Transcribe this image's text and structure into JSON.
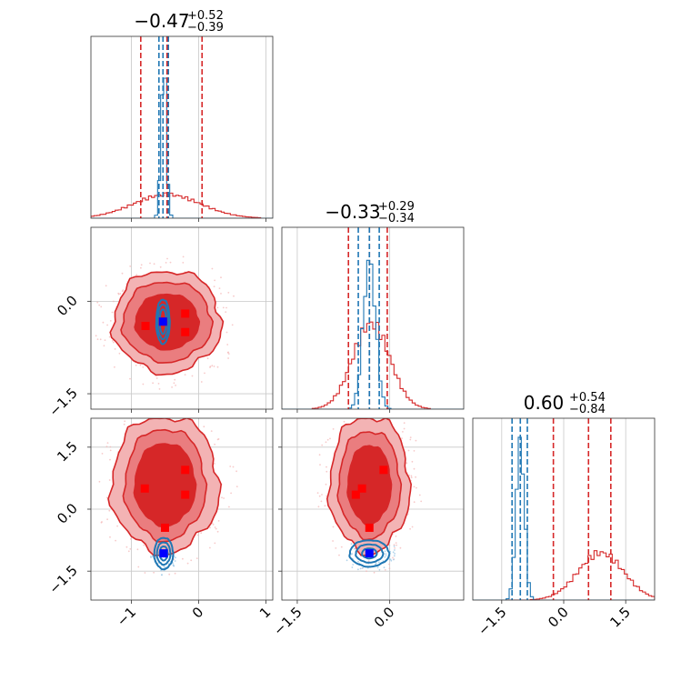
{
  "chart_data": {
    "type": "corner",
    "grid": true,
    "colors": {
      "red": "#d62728",
      "red_fill_outer": "#f3b3b4",
      "red_fill_mid": "#ea7d7f",
      "red_fill_inner": "#d62728",
      "blue": "#1f77b4",
      "marker_red": "#ff0000",
      "marker_blue": "#0000ff"
    },
    "params": [
      {
        "name": "p0",
        "title": {
          "value": "−0.47",
          "plus": "+0.52",
          "minus": "−0.39"
        },
        "range": [
          -1.6,
          1.1
        ],
        "ticks": [
          -1,
          0,
          1
        ],
        "tick_labels": [
          "−1",
          "0",
          "1"
        ],
        "red_quantiles": [
          -0.86,
          -0.47,
          0.05
        ],
        "blue_quantiles": [
          -0.59,
          -0.53,
          -0.45
        ],
        "blue_hist": {
          "center": -0.52,
          "width": 0.04,
          "height": 0.84
        },
        "red_hist": {
          "center": -0.47,
          "width": 0.5,
          "height": 0.13
        }
      },
      {
        "name": "p1",
        "title": {
          "value": "−0.33",
          "plus": "+0.29",
          "minus": "−0.34"
        },
        "range": [
          -1.75,
          1.2
        ],
        "ticks": [
          -1.5,
          0.0
        ],
        "tick_labels": [
          "−1.5",
          "0.0"
        ],
        "red_quantiles": [
          -0.67,
          -0.33,
          -0.04
        ],
        "blue_quantiles": [
          -0.51,
          -0.33,
          -0.17
        ],
        "blue_hist": {
          "center": -0.33,
          "width": 0.1,
          "height": 0.82
        },
        "red_hist": {
          "center": -0.3,
          "width": 0.3,
          "height": 0.47
        }
      },
      {
        "name": "p2",
        "title": {
          "value": "0.60",
          "plus": "+0.54",
          "minus": "−0.84"
        },
        "range": [
          -2.2,
          2.2
        ],
        "ticks": [
          -1.5,
          0.0,
          1.5
        ],
        "tick_labels": [
          "−1.5",
          "0.0",
          "1.5"
        ],
        "red_quantiles": [
          -0.25,
          0.6,
          1.14
        ],
        "blue_quantiles": [
          -1.25,
          -1.05,
          -0.88
        ],
        "blue_hist": {
          "center": -1.05,
          "width": 0.1,
          "height": 0.88
        },
        "red_hist": {
          "center": 0.9,
          "width": 0.55,
          "height": 0.26
        }
      }
    ],
    "panels_2d": [
      {
        "x": 0,
        "y": 1,
        "red_contours": [
          {
            "center": [
              -0.47,
              -0.33
            ],
            "radii": [
              0.47,
              0.45
            ]
          },
          {
            "center": [
              -0.47,
              -0.33
            ],
            "radii": [
              0.66,
              0.65
            ]
          },
          {
            "center": [
              -0.47,
              -0.33
            ],
            "radii": [
              0.8,
              0.83
            ]
          }
        ],
        "blue_contours": [
          {
            "center": [
              -0.53,
              -0.33
            ],
            "radii": [
              0.05,
              0.2
            ]
          },
          {
            "center": [
              -0.53,
              -0.33
            ],
            "radii": [
              0.08,
              0.28
            ]
          },
          {
            "center": [
              -0.53,
              -0.33
            ],
            "radii": [
              0.1,
              0.36
            ]
          }
        ],
        "red_markers": [
          [
            -0.79,
            -0.4
          ],
          [
            -0.53,
            -0.33
          ],
          [
            -0.2,
            -0.2
          ],
          [
            -0.2,
            -0.5
          ]
        ],
        "blue_markers": [
          [
            -0.53,
            -0.33
          ]
        ]
      },
      {
        "x": 0,
        "y": 2,
        "red_contours": [
          {
            "center": [
              -0.5,
              0.6
            ],
            "radii": [
              0.45,
              1.0
            ]
          },
          {
            "center": [
              -0.5,
              0.6
            ],
            "radii": [
              0.6,
              1.35
            ]
          },
          {
            "center": [
              -0.5,
              0.6
            ],
            "radii": [
              0.8,
              1.65
            ]
          }
        ],
        "blue_contours": [
          {
            "center": [
              -0.52,
              -1.07
            ],
            "radii": [
              0.06,
              0.17
            ]
          },
          {
            "center": [
              -0.52,
              -1.07
            ],
            "radii": [
              0.1,
              0.27
            ]
          },
          {
            "center": [
              -0.52,
              -1.07
            ],
            "radii": [
              0.14,
              0.38
            ]
          }
        ],
        "red_markers": [
          [
            -0.8,
            0.5
          ],
          [
            -0.2,
            0.95
          ],
          [
            -0.2,
            0.35
          ],
          [
            -0.5,
            -0.45
          ]
        ],
        "blue_markers": [
          [
            -0.52,
            -1.07
          ]
        ]
      },
      {
        "x": 1,
        "y": 2,
        "red_contours": [
          {
            "center": [
              -0.33,
              0.6
            ],
            "radii": [
              0.35,
              0.95
            ]
          },
          {
            "center": [
              -0.33,
              0.6
            ],
            "radii": [
              0.5,
              1.3
            ]
          },
          {
            "center": [
              -0.33,
              0.6
            ],
            "radii": [
              0.65,
              1.65
            ]
          }
        ],
        "blue_contours": [
          {
            "center": [
              -0.33,
              -1.07
            ],
            "radii": [
              0.12,
              0.12
            ]
          },
          {
            "center": [
              -0.33,
              -1.07
            ],
            "radii": [
              0.22,
              0.22
            ]
          },
          {
            "center": [
              -0.33,
              -1.07
            ],
            "radii": [
              0.32,
              0.32
            ]
          }
        ],
        "red_markers": [
          [
            -0.55,
            0.35
          ],
          [
            -0.45,
            0.5
          ],
          [
            -0.1,
            0.95
          ],
          [
            -0.33,
            -0.45
          ]
        ],
        "blue_markers": [
          [
            -0.33,
            -1.07
          ]
        ]
      }
    ]
  }
}
